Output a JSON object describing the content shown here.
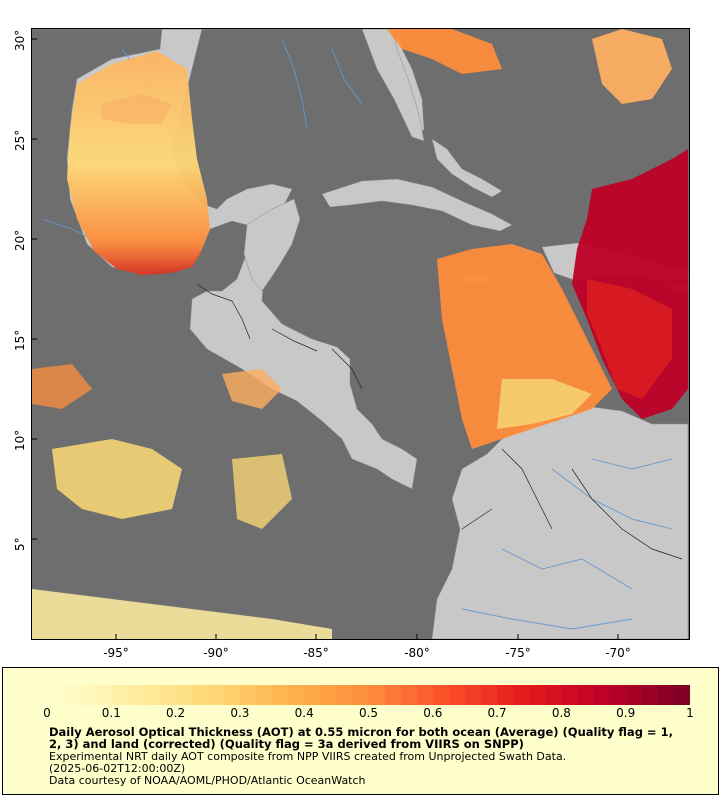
{
  "map": {
    "lat_ticks": [
      {
        "label": "30°",
        "value": 30
      },
      {
        "label": "25°",
        "value": 25
      },
      {
        "label": "20°",
        "value": 20
      },
      {
        "label": "15°",
        "value": 15
      },
      {
        "label": "10°",
        "value": 10
      },
      {
        "label": "5°",
        "value": 5
      }
    ],
    "lon_ticks": [
      {
        "label": "-95°",
        "value": -95
      },
      {
        "label": "-90°",
        "value": -90
      },
      {
        "label": "-85°",
        "value": -85
      },
      {
        "label": "-80°",
        "value": -80
      },
      {
        "label": "-75°",
        "value": -75
      },
      {
        "label": "-70°",
        "value": -70
      }
    ],
    "lon_range": [
      -99,
      -66
    ],
    "lat_range": [
      0.5,
      30.5
    ],
    "colors": {
      "ocean_no_data": "#6e6e6e",
      "land": "#c8c8c8",
      "rivers": "#6699cc",
      "borders": "#000000"
    }
  },
  "legend": {
    "colorbar_ticks": [
      "0",
      "0.1",
      "0.2",
      "0.3",
      "0.4",
      "0.5",
      "0.6",
      "0.7",
      "0.8",
      "0.9",
      "1"
    ],
    "colorbar_colors": [
      "#ffffcc",
      "#ffeda0",
      "#fed976",
      "#feb24c",
      "#fd8d3c",
      "#fc4e2a",
      "#e31a1c",
      "#bd0026",
      "#800026"
    ],
    "title": "Daily Aerosol Optical Thickness (AOT) at 0.55 micron for both ocean (Average) (Quality flag = 1, 2, 3) and land (corrected) (Quality flag = 3a derived from VIIRS on SNPP)",
    "line2": "Experimental NRT daily AOT composite from NPP VIIRS created from Unprojected Swath Data.",
    "line3": "(2025-06-02T12:00:00Z)",
    "line4": "Data courtesy of NOAA/AOML/PHOD/Atlantic OceanWatch"
  }
}
